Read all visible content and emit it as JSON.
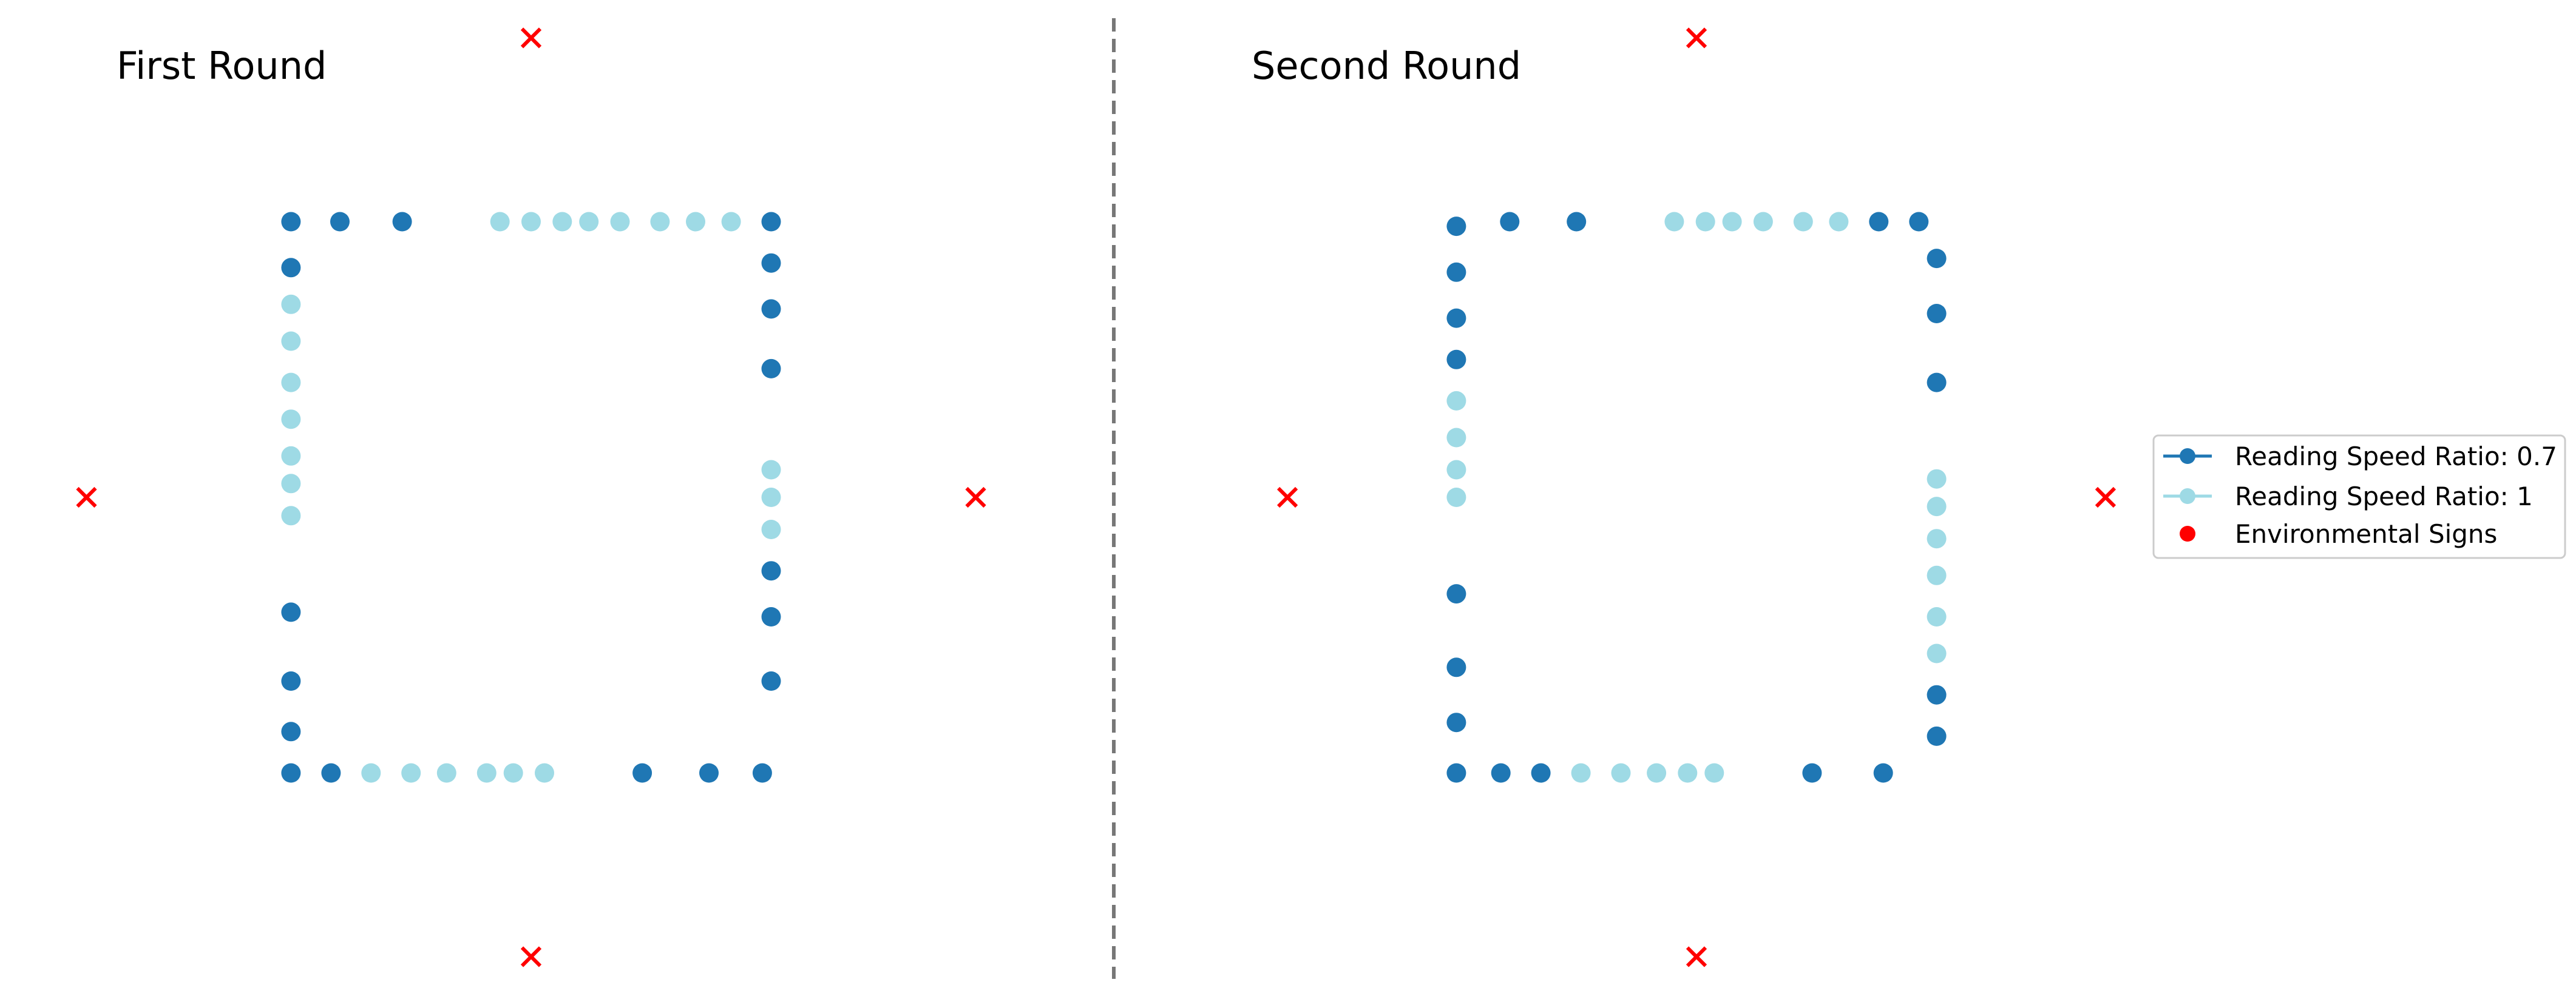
{
  "chart_data": {
    "type": "scatter",
    "colors": {
      "ratio_0_7": "#1f77b4",
      "ratio_1": "#9edae5",
      "signs": "#ff0000",
      "divider": "#777777"
    },
    "legend": {
      "placement": "center-right",
      "entries": [
        {
          "key": "ratio_0_7",
          "label": "Reading Speed Ratio: 0.7",
          "marker": "line-circle"
        },
        {
          "key": "ratio_1",
          "label": "Reading Speed Ratio: 1",
          "marker": "line-circle"
        },
        {
          "key": "signs",
          "label": "Environmental Signs",
          "marker": "dot"
        }
      ]
    },
    "panels": [
      {
        "title": "First Round",
        "signs": [
          [
            0,
            5
          ],
          [
            -5,
            0
          ],
          [
            5,
            0
          ],
          [
            0,
            -5
          ]
        ],
        "points": [
          [
            -2.7,
            3,
            "ratio_0_7"
          ],
          [
            -2.15,
            3,
            "ratio_0_7"
          ],
          [
            -1.45,
            3,
            "ratio_0_7"
          ],
          [
            -0.35,
            3,
            "ratio_1"
          ],
          [
            0,
            3,
            "ratio_1"
          ],
          [
            0.35,
            3,
            "ratio_1"
          ],
          [
            0.65,
            3,
            "ratio_1"
          ],
          [
            1,
            3,
            "ratio_1"
          ],
          [
            1.45,
            3,
            "ratio_1"
          ],
          [
            1.85,
            3,
            "ratio_1"
          ],
          [
            2.25,
            3,
            "ratio_1"
          ],
          [
            2.7,
            3,
            "ratio_0_7"
          ],
          [
            2.7,
            2.55,
            "ratio_0_7"
          ],
          [
            2.7,
            2.05,
            "ratio_0_7"
          ],
          [
            2.7,
            1.4,
            "ratio_0_7"
          ],
          [
            2.7,
            0.3,
            "ratio_1"
          ],
          [
            2.7,
            0,
            "ratio_1"
          ],
          [
            2.7,
            -0.35,
            "ratio_1"
          ],
          [
            2.7,
            -0.8,
            "ratio_0_7"
          ],
          [
            2.7,
            -1.3,
            "ratio_0_7"
          ],
          [
            2.7,
            -2,
            "ratio_0_7"
          ],
          [
            -2.7,
            2.5,
            "ratio_0_7"
          ],
          [
            -2.7,
            2.1,
            "ratio_1"
          ],
          [
            -2.7,
            1.7,
            "ratio_1"
          ],
          [
            -2.7,
            1.25,
            "ratio_1"
          ],
          [
            -2.7,
            0.85,
            "ratio_1"
          ],
          [
            -2.7,
            0.45,
            "ratio_1"
          ],
          [
            -2.7,
            0.15,
            "ratio_1"
          ],
          [
            -2.7,
            -0.2,
            "ratio_1"
          ],
          [
            -2.7,
            -1.25,
            "ratio_0_7"
          ],
          [
            -2.7,
            -2,
            "ratio_0_7"
          ],
          [
            -2.7,
            -2.55,
            "ratio_0_7"
          ],
          [
            -2.7,
            -3,
            "ratio_0_7"
          ],
          [
            -2.25,
            -3,
            "ratio_0_7"
          ],
          [
            -1.8,
            -3,
            "ratio_1"
          ],
          [
            -1.35,
            -3,
            "ratio_1"
          ],
          [
            -0.95,
            -3,
            "ratio_1"
          ],
          [
            -0.5,
            -3,
            "ratio_1"
          ],
          [
            -0.2,
            -3,
            "ratio_1"
          ],
          [
            0.15,
            -3,
            "ratio_1"
          ],
          [
            1.25,
            -3,
            "ratio_0_7"
          ],
          [
            2,
            -3,
            "ratio_0_7"
          ],
          [
            2.6,
            -3,
            "ratio_0_7"
          ]
        ]
      },
      {
        "title": "Second Round",
        "signs": [
          [
            0,
            5
          ],
          [
            -4.6,
            0
          ],
          [
            4.6,
            0
          ],
          [
            0,
            -5
          ]
        ],
        "points": [
          [
            -2.7,
            2.95,
            "ratio_0_7"
          ],
          [
            -2.1,
            3,
            "ratio_0_7"
          ],
          [
            -1.35,
            3,
            "ratio_0_7"
          ],
          [
            -0.25,
            3,
            "ratio_1"
          ],
          [
            0.1,
            3,
            "ratio_1"
          ],
          [
            0.4,
            3,
            "ratio_1"
          ],
          [
            0.75,
            3,
            "ratio_1"
          ],
          [
            1.2,
            3,
            "ratio_1"
          ],
          [
            1.6,
            3,
            "ratio_1"
          ],
          [
            2.05,
            3,
            "ratio_0_7"
          ],
          [
            2.5,
            3,
            "ratio_0_7"
          ],
          [
            2.7,
            2.6,
            "ratio_0_7"
          ],
          [
            2.7,
            2,
            "ratio_0_7"
          ],
          [
            2.7,
            1.25,
            "ratio_0_7"
          ],
          [
            2.7,
            0.2,
            "ratio_1"
          ],
          [
            2.7,
            -0.1,
            "ratio_1"
          ],
          [
            2.7,
            -0.45,
            "ratio_1"
          ],
          [
            2.7,
            -0.85,
            "ratio_1"
          ],
          [
            2.7,
            -1.3,
            "ratio_1"
          ],
          [
            2.7,
            -1.7,
            "ratio_1"
          ],
          [
            2.7,
            -2.15,
            "ratio_0_7"
          ],
          [
            2.7,
            -2.6,
            "ratio_0_7"
          ],
          [
            -2.7,
            2.45,
            "ratio_0_7"
          ],
          [
            -2.7,
            1.95,
            "ratio_0_7"
          ],
          [
            -2.7,
            1.5,
            "ratio_0_7"
          ],
          [
            -2.7,
            1.05,
            "ratio_1"
          ],
          [
            -2.7,
            0.65,
            "ratio_1"
          ],
          [
            -2.7,
            0.3,
            "ratio_1"
          ],
          [
            -2.7,
            0,
            "ratio_1"
          ],
          [
            -2.7,
            -1.05,
            "ratio_0_7"
          ],
          [
            -2.7,
            -1.85,
            "ratio_0_7"
          ],
          [
            -2.7,
            -2.45,
            "ratio_0_7"
          ],
          [
            -2.7,
            -3,
            "ratio_0_7"
          ],
          [
            -2.2,
            -3,
            "ratio_0_7"
          ],
          [
            -1.75,
            -3,
            "ratio_0_7"
          ],
          [
            -1.3,
            -3,
            "ratio_1"
          ],
          [
            -0.85,
            -3,
            "ratio_1"
          ],
          [
            -0.45,
            -3,
            "ratio_1"
          ],
          [
            -0.1,
            -3,
            "ratio_1"
          ],
          [
            0.2,
            -3,
            "ratio_1"
          ],
          [
            1.3,
            -3,
            "ratio_0_7"
          ],
          [
            2.1,
            -3,
            "ratio_0_7"
          ]
        ]
      }
    ]
  }
}
